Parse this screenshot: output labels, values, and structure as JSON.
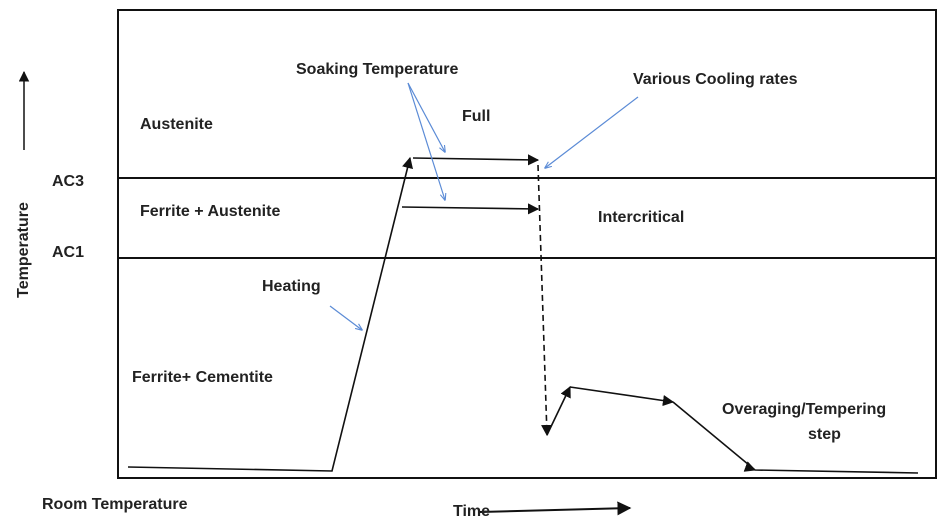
{
  "labels": {
    "soaking": "Soaking Temperature",
    "cooling": "Various Cooling rates",
    "austenite": "Austenite",
    "full": "Full",
    "ac3": "AC3",
    "ferrite_austenite": "Ferrite + Austenite",
    "intercritical": "Intercritical",
    "ac1": "AC1",
    "heating": "Heating",
    "ferrite_cementite": "Ferrite+ Cementite",
    "overaging": [
      "Overaging/Tempering",
      "step"
    ],
    "room_temperature": "Room Temperature",
    "time": "Time",
    "temperature": "Temperature"
  }
}
